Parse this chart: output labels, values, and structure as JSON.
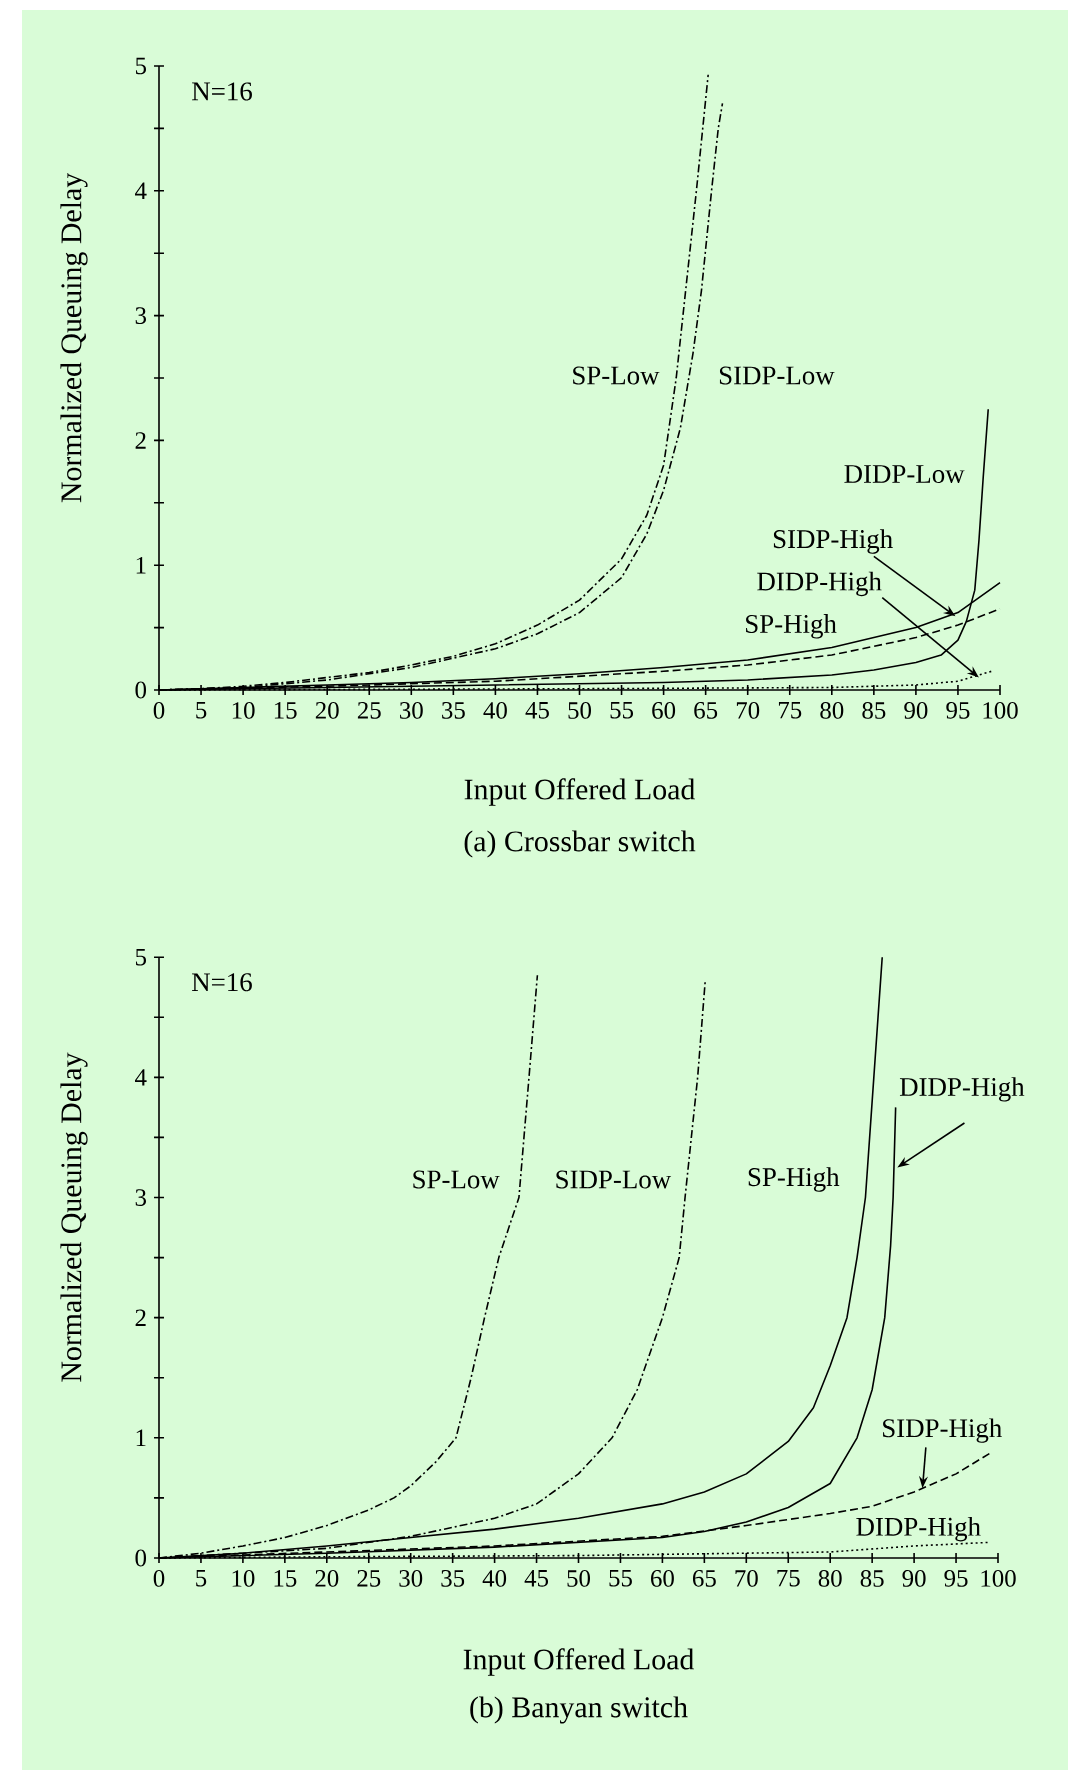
{
  "chart_data": [
    {
      "type": "line",
      "title": "(a) Crossbar switch",
      "xlabel": "Input Offered Load",
      "ylabel": "Normalized Queuing Delay",
      "annotations": [
        "N=16"
      ],
      "xlim": [
        0,
        100
      ],
      "ylim": [
        0,
        5
      ],
      "xticks": [
        0,
        5,
        10,
        15,
        20,
        25,
        30,
        35,
        40,
        45,
        50,
        55,
        60,
        65,
        70,
        75,
        80,
        85,
        90,
        95,
        100
      ],
      "yticks": [
        0,
        {
          "value": 0.5,
          "label": null
        },
        1,
        {
          "value": 1.5,
          "label": null
        },
        2,
        {
          "value": 2.5,
          "label": null
        },
        3,
        {
          "value": 3.5,
          "label": null
        },
        4,
        {
          "value": 4.5,
          "label": null
        },
        5
      ],
      "series": [
        {
          "name": "SP-Low",
          "color": "#000000",
          "line_style": "dashdot",
          "x": [
            0,
            5,
            10,
            15,
            20,
            25,
            30,
            35,
            40,
            45,
            50,
            55,
            58,
            60,
            61.5,
            62.3,
            63.9,
            65.3
          ],
          "values": [
            0,
            0.01,
            0.03,
            0.06,
            0.1,
            0.14,
            0.2,
            0.27,
            0.37,
            0.52,
            0.72,
            1.05,
            1.4,
            1.8,
            2.5,
            3.0,
            4.0,
            4.93
          ]
        },
        {
          "name": "SIDP-Low",
          "color": "#000000",
          "line_style": "dashdot",
          "x": [
            0,
            10,
            20,
            30,
            40,
            45,
            50,
            55,
            58,
            60,
            62,
            63.5,
            64.5,
            65.7,
            66.5,
            67
          ],
          "values": [
            0,
            0.02,
            0.08,
            0.18,
            0.33,
            0.45,
            0.62,
            0.9,
            1.25,
            1.6,
            2.1,
            2.7,
            3.2,
            4.0,
            4.5,
            4.7
          ]
        },
        {
          "name": "DIDP-Low",
          "color": "#000000",
          "line_style": "solid",
          "x": [
            0,
            20,
            40,
            60,
            70,
            80,
            85,
            90,
            93,
            95,
            96,
            97,
            97.5,
            98,
            98.6
          ],
          "values": [
            0,
            0.02,
            0.04,
            0.06,
            0.08,
            0.12,
            0.16,
            0.22,
            0.28,
            0.4,
            0.55,
            0.8,
            1.2,
            1.7,
            2.25
          ]
        },
        {
          "name": "SIDP-High",
          "color": "#000000",
          "line_style": "solid",
          "x": [
            0,
            10,
            20,
            30,
            40,
            50,
            60,
            70,
            80,
            90,
            95,
            100
          ],
          "values": [
            0,
            0.02,
            0.04,
            0.06,
            0.09,
            0.13,
            0.18,
            0.24,
            0.34,
            0.5,
            0.62,
            0.86
          ]
        },
        {
          "name": "DIDP-High",
          "color": "#000000",
          "line_style": "dotted",
          "x": [
            0,
            50,
            80,
            90,
            95,
            99
          ],
          "values": [
            0,
            0.01,
            0.02,
            0.04,
            0.07,
            0.15
          ]
        },
        {
          "name": "SP-High",
          "color": "#000000",
          "line_style": "dashed",
          "x": [
            0,
            20,
            40,
            60,
            70,
            80,
            90,
            95,
            100
          ],
          "values": [
            0,
            0.03,
            0.07,
            0.15,
            0.2,
            0.28,
            0.42,
            0.52,
            0.65
          ]
        }
      ]
    },
    {
      "type": "line",
      "title": "(b) Banyan switch",
      "xlabel": "Input Offered Load",
      "ylabel": "Normalized Queuing Delay",
      "annotations": [
        "N=16"
      ],
      "xlim": [
        0,
        100
      ],
      "ylim": [
        0,
        5
      ],
      "xticks": [
        0,
        5,
        10,
        15,
        20,
        25,
        30,
        35,
        40,
        45,
        50,
        55,
        60,
        65,
        70,
        75,
        80,
        85,
        90,
        95,
        100
      ],
      "yticks": [
        0,
        {
          "value": 0.5,
          "label": null
        },
        1,
        {
          "value": 1.5,
          "label": null
        },
        2,
        {
          "value": 2.5,
          "label": null
        },
        3,
        {
          "value": 3.5,
          "label": null
        },
        4,
        {
          "value": 4.5,
          "label": null
        },
        5
      ],
      "series": [
        {
          "name": "SP-Low",
          "color": "#000000",
          "line_style": "dashdot",
          "x": [
            0,
            5,
            10,
            15,
            20,
            25,
            28,
            30,
            33,
            35.4,
            37.2,
            38.8,
            40.5,
            42.9,
            44.1,
            45.1
          ],
          "values": [
            0,
            0.04,
            0.1,
            0.17,
            0.27,
            0.4,
            0.5,
            0.6,
            0.8,
            1.0,
            1.5,
            2.0,
            2.5,
            3.0,
            4.0,
            4.85
          ]
        },
        {
          "name": "SIDP-Low",
          "color": "#000000",
          "line_style": "dashdot",
          "x": [
            0,
            20,
            30,
            40,
            45,
            50,
            54,
            57,
            60,
            62,
            62.7,
            64.2,
            65.1
          ],
          "values": [
            0,
            0.08,
            0.18,
            0.33,
            0.45,
            0.7,
            1.0,
            1.4,
            2.0,
            2.5,
            3.0,
            4.0,
            4.8
          ]
        },
        {
          "name": "SP-High",
          "color": "#000000",
          "line_style": "solid",
          "x": [
            0,
            10,
            20,
            30,
            40,
            50,
            60,
            65,
            70,
            75,
            78,
            80,
            82,
            83.2,
            84.2,
            85.2,
            86.2
          ],
          "values": [
            0,
            0.04,
            0.1,
            0.17,
            0.24,
            0.33,
            0.45,
            0.55,
            0.7,
            0.97,
            1.25,
            1.6,
            2.0,
            2.5,
            3.0,
            4.0,
            5.0
          ]
        },
        {
          "name": "DIDP-High",
          "color": "#000000",
          "line_style": "solid",
          "x": [
            0,
            20,
            40,
            60,
            65,
            70,
            75,
            80,
            83.2,
            85,
            86.5,
            87.2,
            87.5,
            87.8
          ],
          "values": [
            0,
            0.04,
            0.09,
            0.17,
            0.22,
            0.3,
            0.42,
            0.62,
            1.0,
            1.4,
            2.0,
            2.6,
            3.0,
            3.75
          ]
        },
        {
          "name": "SIDP-High",
          "color": "#000000",
          "line_style": "dashed",
          "x": [
            0,
            20,
            40,
            60,
            70,
            80,
            85,
            90,
            95,
            99
          ],
          "values": [
            0,
            0.05,
            0.1,
            0.18,
            0.27,
            0.37,
            0.43,
            0.55,
            0.7,
            0.87
          ]
        },
        {
          "name": "DIDP-High",
          "color": "#000000",
          "line_style": "dotted",
          "x": [
            0,
            20,
            50,
            80,
            90,
            99
          ],
          "values": [
            0,
            0.01,
            0.02,
            0.05,
            0.1,
            0.13
          ]
        }
      ]
    }
  ]
}
